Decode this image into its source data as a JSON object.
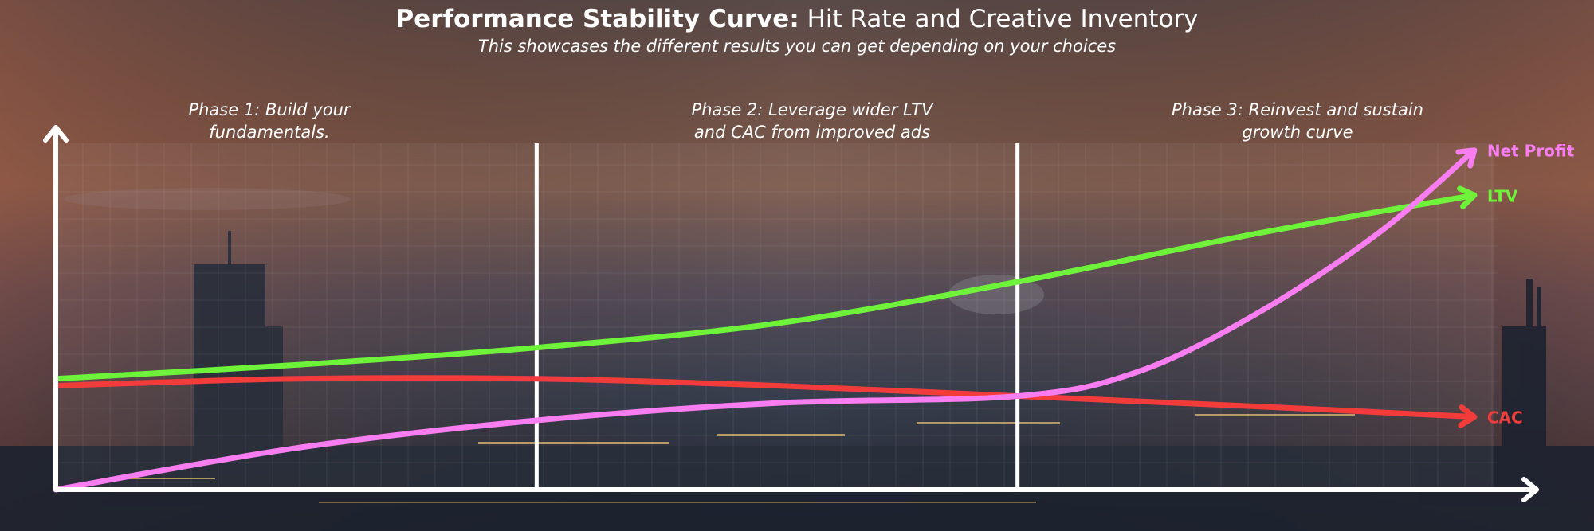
{
  "title": {
    "bold": "Performance Stability Curve:",
    "light": "Hit Rate and Creative Inventory"
  },
  "subtitle": "This showcases the different results you can get depending on your choices",
  "phases": [
    {
      "line1": "Phase 1: Build your",
      "line2": "fundamentals."
    },
    {
      "line1": "Phase 2: Leverage wider LTV",
      "line2": "and CAC from improved ads"
    },
    {
      "line1": "Phase 3: Reinvest and sustain",
      "line2": "growth curve"
    }
  ],
  "colors": {
    "ltv": "#6ef23a",
    "cac": "#f23c3c",
    "net_profit": "#f77df0",
    "axis": "#ffffff"
  },
  "chart_data": {
    "type": "line",
    "title": "Performance Stability Curve: Hit Rate and Creative Inventory",
    "xlabel": "",
    "ylabel": "",
    "xlim": [
      0,
      3
    ],
    "ylim": [
      0,
      10
    ],
    "grid": true,
    "phase_boundaries": [
      1,
      2
    ],
    "series": [
      {
        "name": "LTV",
        "label": "LTV",
        "x": [
          0,
          0.5,
          1,
          1.5,
          2,
          2.5,
          2.95
        ],
        "values": [
          3.2,
          3.6,
          4.1,
          4.8,
          6.0,
          7.4,
          8.5
        ]
      },
      {
        "name": "CAC",
        "label": "CAC",
        "x": [
          0,
          0.5,
          1,
          1.5,
          2,
          2.5,
          2.95
        ],
        "values": [
          3.0,
          3.2,
          3.2,
          3.0,
          2.7,
          2.4,
          2.1
        ]
      },
      {
        "name": "Net Profit",
        "label": "Net Profit",
        "x": [
          0,
          0.5,
          1,
          1.5,
          2,
          2.25,
          2.5,
          2.75,
          2.95
        ],
        "values": [
          0,
          1.2,
          2.0,
          2.5,
          2.7,
          3.4,
          5.1,
          7.4,
          9.8
        ]
      }
    ]
  }
}
